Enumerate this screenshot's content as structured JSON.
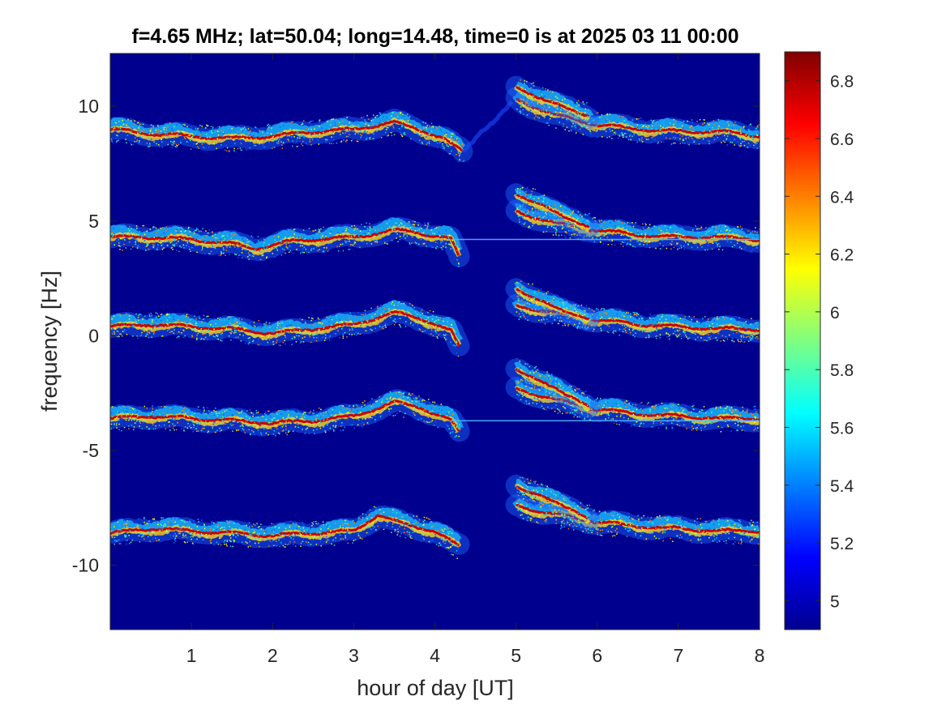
{
  "chart_data": {
    "type": "heatmap",
    "title": "f=4.65 MHz;  lat=50.04; long=14.48, time=0 is at 2025 03 11 00:00",
    "xlabel": "hour of day [UT]",
    "ylabel": "frequency [Hz]",
    "xlim": [
      0,
      8
    ],
    "ylim": [
      -12.8,
      12.3
    ],
    "xticks": [
      1,
      2,
      3,
      4,
      5,
      6,
      7,
      8
    ],
    "xtick_labels": [
      "1",
      "2",
      "3",
      "4",
      "5",
      "6",
      "7",
      "8"
    ],
    "yticks": [
      10,
      5,
      0,
      -5,
      -10
    ],
    "ytick_labels": [
      "10",
      "5",
      "0",
      "-5",
      "-10"
    ],
    "colorbar": {
      "colormap": "jet",
      "range": [
        4.9,
        6.9
      ],
      "ticks": [
        6.8,
        6.6,
        6.4,
        6.2,
        6.0,
        5.8,
        5.6,
        5.4,
        5.2,
        5.0
      ],
      "tick_labels": [
        "6.8",
        "6.6",
        "6.4",
        "6.2",
        "6",
        "5.8",
        "5.6",
        "5.4",
        "5.2",
        "5"
      ]
    },
    "background_color": "#00008f",
    "traces": [
      {
        "base_frequency": 8.9,
        "points": [
          [
            0.0,
            9.0
          ],
          [
            0.5,
            8.8
          ],
          [
            1.0,
            8.7
          ],
          [
            1.5,
            8.6
          ],
          [
            2.0,
            8.7
          ],
          [
            2.5,
            8.9
          ],
          [
            3.0,
            9.0
          ],
          [
            3.5,
            9.3
          ],
          [
            3.8,
            9.0
          ],
          [
            4.1,
            8.6
          ],
          [
            4.35,
            8.0
          ]
        ]
      },
      {
        "base_frequency": 4.2,
        "points": [
          [
            0.0,
            4.3
          ],
          [
            0.5,
            4.3
          ],
          [
            1.0,
            4.2
          ],
          [
            1.5,
            4.0
          ],
          [
            1.8,
            3.8
          ],
          [
            2.2,
            4.1
          ],
          [
            2.5,
            4.2
          ],
          [
            3.0,
            4.3
          ],
          [
            3.5,
            4.6
          ],
          [
            3.8,
            4.5
          ],
          [
            4.2,
            4.2
          ],
          [
            4.3,
            3.4
          ]
        ]
      },
      {
        "base_frequency": 0.4,
        "points": [
          [
            0.0,
            0.4
          ],
          [
            0.5,
            0.5
          ],
          [
            1.0,
            0.4
          ],
          [
            1.5,
            0.3
          ],
          [
            2.0,
            0.1
          ],
          [
            2.5,
            0.3
          ],
          [
            3.0,
            0.5
          ],
          [
            3.5,
            1.0
          ],
          [
            3.8,
            0.8
          ],
          [
            4.2,
            0.2
          ],
          [
            4.3,
            -0.5
          ]
        ]
      },
      {
        "base_frequency": -3.6,
        "points": [
          [
            0.0,
            -3.6
          ],
          [
            0.5,
            -3.5
          ],
          [
            1.0,
            -3.6
          ],
          [
            1.5,
            -3.7
          ],
          [
            2.0,
            -3.8
          ],
          [
            2.5,
            -3.7
          ],
          [
            3.0,
            -3.5
          ],
          [
            3.5,
            -2.9
          ],
          [
            3.8,
            -3.1
          ],
          [
            4.2,
            -3.7
          ],
          [
            4.3,
            -4.2
          ]
        ]
      },
      {
        "base_frequency": -8.6,
        "points": [
          [
            0.0,
            -8.6
          ],
          [
            0.5,
            -8.4
          ],
          [
            1.0,
            -8.5
          ],
          [
            1.5,
            -8.6
          ],
          [
            2.0,
            -8.7
          ],
          [
            2.5,
            -8.6
          ],
          [
            3.0,
            -8.5
          ],
          [
            3.3,
            -7.8
          ],
          [
            3.6,
            -8.2
          ],
          [
            4.0,
            -8.5
          ],
          [
            4.3,
            -9.2
          ]
        ]
      }
    ],
    "afternoon_traces": [
      {
        "points": [
          [
            5.0,
            10.3
          ],
          [
            5.5,
            9.6
          ],
          [
            6.0,
            9.2
          ],
          [
            6.5,
            9.0
          ],
          [
            7.0,
            8.9
          ],
          [
            7.5,
            8.9
          ],
          [
            8.0,
            8.7
          ]
        ]
      },
      {
        "points": [
          [
            5.0,
            10.8
          ],
          [
            5.3,
            10.4
          ],
          [
            5.6,
            9.9
          ],
          [
            5.9,
            9.6
          ]
        ]
      },
      {
        "points": [
          [
            5.0,
            5.4
          ],
          [
            5.5,
            4.9
          ],
          [
            6.0,
            4.6
          ],
          [
            6.5,
            4.4
          ],
          [
            7.0,
            4.3
          ],
          [
            7.5,
            4.3
          ],
          [
            8.0,
            4.2
          ]
        ]
      },
      {
        "points": [
          [
            5.0,
            6.1
          ],
          [
            5.3,
            5.8
          ],
          [
            5.6,
            5.1
          ],
          [
            5.9,
            4.8
          ]
        ]
      },
      {
        "points": [
          [
            5.0,
            1.3
          ],
          [
            5.5,
            1.0
          ],
          [
            6.0,
            0.7
          ],
          [
            6.5,
            0.5
          ],
          [
            7.0,
            0.4
          ],
          [
            7.5,
            0.3
          ],
          [
            8.0,
            0.3
          ]
        ]
      },
      {
        "points": [
          [
            5.0,
            2.0
          ],
          [
            5.3,
            1.6
          ],
          [
            5.6,
            1.0
          ],
          [
            5.9,
            0.8
          ]
        ]
      },
      {
        "points": [
          [
            5.0,
            -2.3
          ],
          [
            5.5,
            -2.8
          ],
          [
            6.0,
            -3.2
          ],
          [
            6.5,
            -3.4
          ],
          [
            7.0,
            -3.5
          ],
          [
            7.5,
            -3.6
          ],
          [
            8.0,
            -3.6
          ]
        ]
      },
      {
        "points": [
          [
            5.0,
            -1.5
          ],
          [
            5.3,
            -1.9
          ],
          [
            5.6,
            -2.6
          ],
          [
            5.9,
            -3.0
          ]
        ]
      },
      {
        "points": [
          [
            5.0,
            -7.4
          ],
          [
            5.5,
            -7.8
          ],
          [
            6.0,
            -8.1
          ],
          [
            6.5,
            -8.3
          ],
          [
            7.0,
            -8.4
          ],
          [
            7.5,
            -8.5
          ],
          [
            8.0,
            -8.5
          ]
        ]
      },
      {
        "points": [
          [
            5.0,
            -6.6
          ],
          [
            5.3,
            -6.9
          ],
          [
            5.6,
            -7.5
          ],
          [
            5.9,
            -7.9
          ]
        ]
      }
    ],
    "transition_trace": {
      "points": [
        [
          4.35,
          8.0
        ],
        [
          4.55,
          8.9
        ],
        [
          4.75,
          9.4
        ],
        [
          4.95,
          10.1
        ]
      ]
    },
    "horizontal_lines": [
      4.2,
      -3.7
    ]
  }
}
